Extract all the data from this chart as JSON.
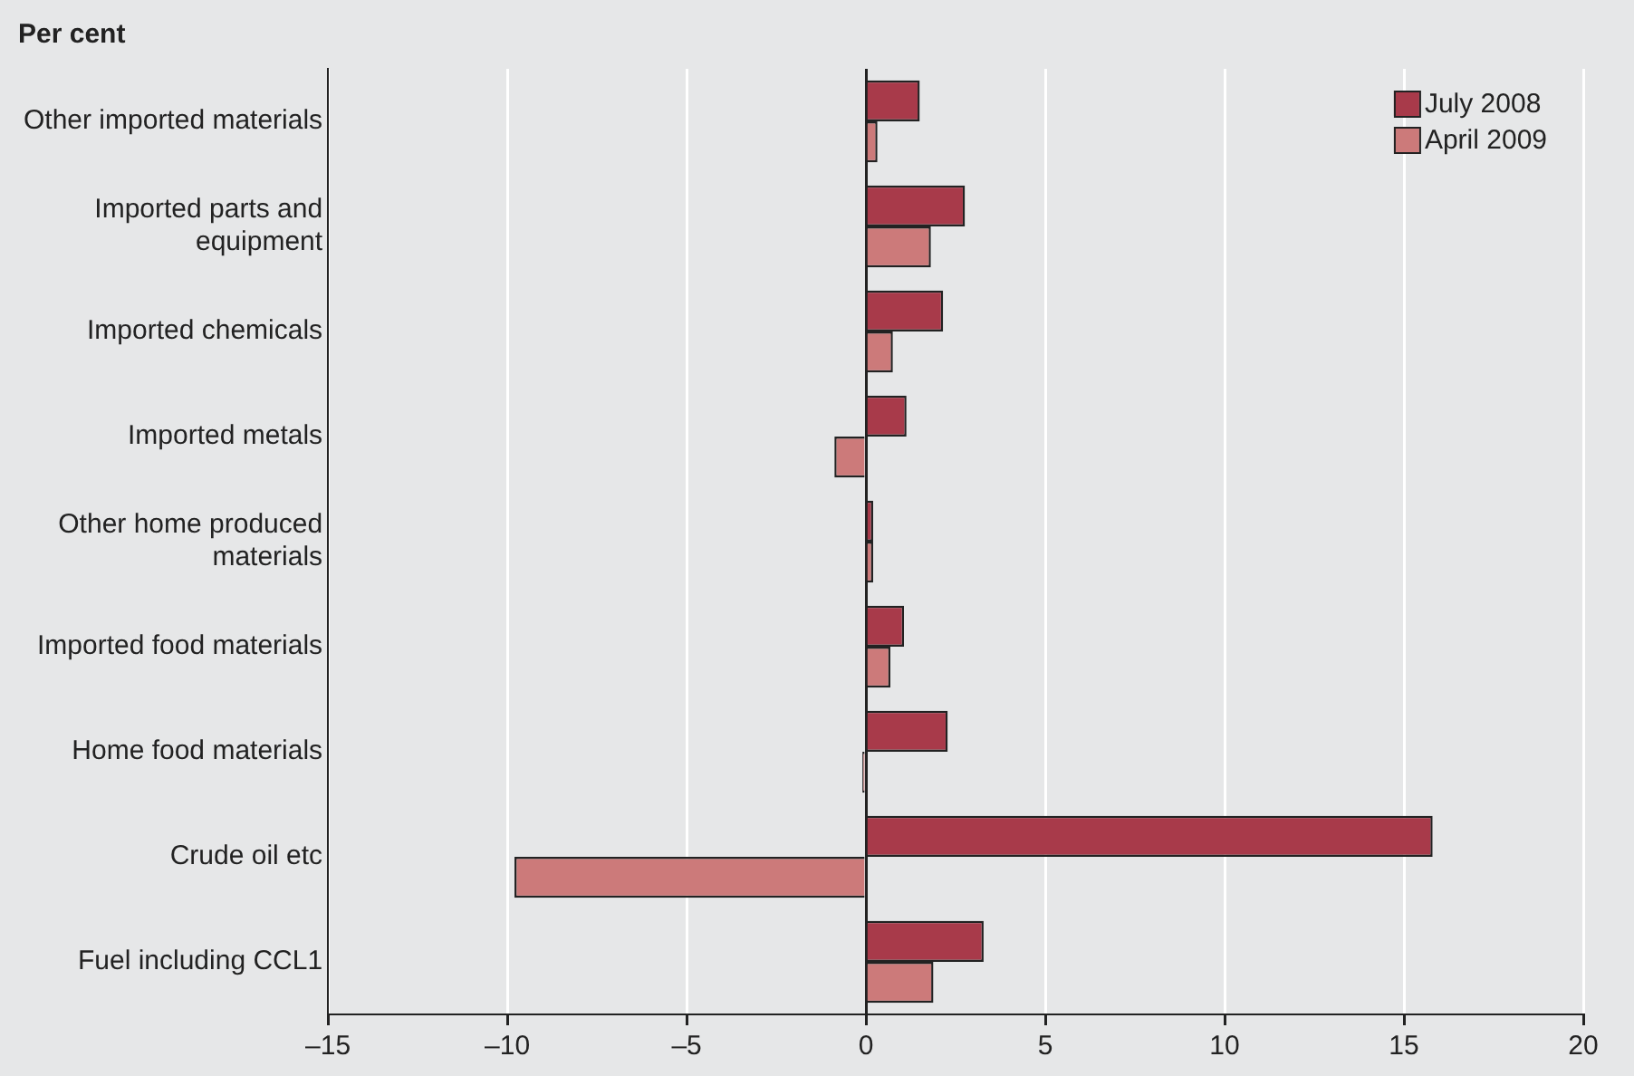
{
  "chart_data": {
    "type": "bar",
    "orientation": "horizontal",
    "xlabel": "Per cent",
    "categories": [
      "Other imported materials",
      "Imported parts and equipment",
      "Imported chemicals",
      "Imported metals",
      "Other home produced materials",
      "Imported food materials",
      "Home food materials",
      "Crude oil etc",
      "Fuel including CCL1"
    ],
    "series": [
      {
        "name": "July 2008",
        "color": "#a83a4a",
        "values": [
          1.5,
          2.76,
          2.15,
          1.13,
          0.2,
          1.06,
          2.28,
          15.8,
          3.28
        ]
      },
      {
        "name": "April 2009",
        "color": "#cc7a7a",
        "values": [
          0.32,
          1.81,
          0.75,
          -0.88,
          0.2,
          0.68,
          -0.1,
          -9.8,
          1.88
        ]
      }
    ],
    "xlim": [
      -15,
      20
    ],
    "xticks": [
      {
        "value": -15,
        "label": "–15"
      },
      {
        "value": -10,
        "label": "–10"
      },
      {
        "value": -5,
        "label": "–5"
      },
      0,
      5,
      10,
      15,
      20
    ],
    "grid": "x",
    "legend": "top right"
  }
}
